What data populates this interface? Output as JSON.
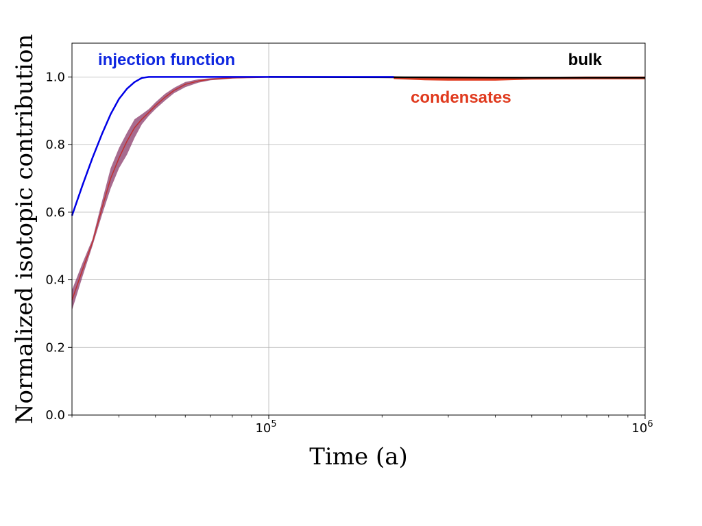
{
  "chart_data": {
    "type": "line",
    "xlabel": "Time (a)",
    "ylabel": "Normalized isotopic contribution",
    "xscale": "log",
    "xlim": [
      30000,
      1000000
    ],
    "ylim": [
      0,
      1.1
    ],
    "grid": true,
    "x_ticks": [
      {
        "value": 100000,
        "base": "10",
        "exp": "5"
      },
      {
        "value": 1000000,
        "base": "10",
        "exp": "6"
      }
    ],
    "y_ticks": [
      {
        "value": 0.0,
        "label": "0.0"
      },
      {
        "value": 0.2,
        "label": "0.2"
      },
      {
        "value": 0.4,
        "label": "0.4"
      },
      {
        "value": 0.6,
        "label": "0.6"
      },
      {
        "value": 0.8,
        "label": "0.8"
      },
      {
        "value": 1.0,
        "label": "1.0"
      }
    ],
    "series": [
      {
        "name": "injection function",
        "color": "#0000e6",
        "x": [
          30000,
          32000,
          34000,
          36000,
          38000,
          40000,
          42000,
          44000,
          46000,
          48000,
          50000,
          60000,
          80000,
          100000,
          150000,
          215000
        ],
        "y": [
          0.59,
          0.68,
          0.76,
          0.83,
          0.89,
          0.935,
          0.965,
          0.985,
          0.997,
          1.0,
          1.0,
          1.0,
          1.0,
          1.0,
          1.0,
          1.0
        ]
      },
      {
        "name": "bulk",
        "color": "#000000",
        "x": [
          100000,
          215000,
          500000,
          1000000
        ],
        "y": [
          1.0,
          0.999,
          0.998,
          0.998
        ]
      },
      {
        "name": "condensates",
        "color": "#e03a1e",
        "x": [
          215000,
          260000,
          300000,
          400000,
          500000,
          700000,
          1000000
        ],
        "y": [
          0.998,
          0.994,
          0.993,
          0.993,
          0.996,
          0.997,
          0.997
        ]
      },
      {
        "name": "",
        "color": "#c03030",
        "band_color": "#8a3a6a",
        "x": [
          30000,
          32000,
          34000,
          36000,
          38000,
          40000,
          42000,
          44000,
          46000,
          48000,
          50000,
          53000,
          56000,
          60000,
          65000,
          70000,
          80000,
          90000,
          100000,
          150000,
          215000
        ],
        "y": [
          0.34,
          0.43,
          0.51,
          0.61,
          0.7,
          0.76,
          0.81,
          0.85,
          0.875,
          0.895,
          0.915,
          0.94,
          0.96,
          0.978,
          0.988,
          0.993,
          0.997,
          0.998,
          0.999,
          0.999,
          0.998
        ],
        "y_low": [
          0.31,
          0.41,
          0.5,
          0.59,
          0.67,
          0.73,
          0.77,
          0.82,
          0.86,
          0.885,
          0.905,
          0.93,
          0.952,
          0.97,
          0.983,
          0.99,
          0.995,
          0.997,
          0.998,
          0.998,
          0.997
        ],
        "y_high": [
          0.37,
          0.45,
          0.52,
          0.63,
          0.73,
          0.79,
          0.835,
          0.875,
          0.89,
          0.905,
          0.925,
          0.95,
          0.968,
          0.985,
          0.993,
          0.996,
          0.999,
          1.0,
          1.0,
          1.0,
          0.999
        ]
      }
    ],
    "annotations": [
      {
        "text": "injection function",
        "color": "#0f27e0"
      },
      {
        "text": "bulk",
        "color": "#000000"
      },
      {
        "text": "condensates",
        "color": "#e03a1e"
      }
    ]
  }
}
